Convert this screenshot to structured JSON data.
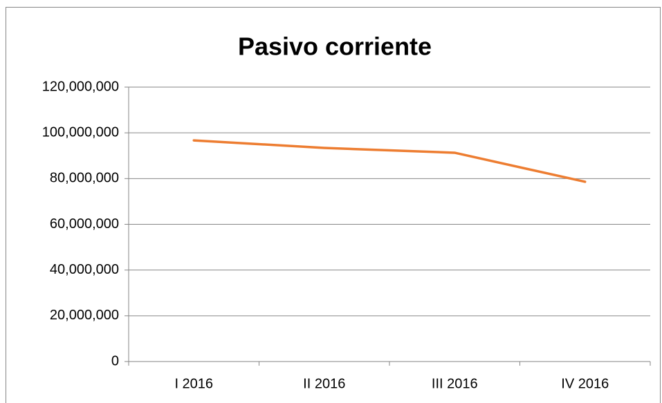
{
  "chart_data": {
    "type": "line",
    "title": "Pasivo corriente",
    "categories": [
      "I 2016",
      "II 2016",
      "III 2016",
      "IV 2016"
    ],
    "series": [
      {
        "name": "Pasivo corriente",
        "color": "#ed7d31",
        "values": [
          96700000,
          93400000,
          91300000,
          78600000
        ]
      }
    ],
    "ylim": [
      0,
      120000000
    ],
    "yticks": [
      0,
      {
        "value": 20000000,
        "label": "20,000,000"
      },
      {
        "value": 40000000,
        "label": "40,000,000"
      },
      {
        "value": 60000000,
        "label": "60,000,000"
      },
      {
        "value": 80000000,
        "label": "80,000,000"
      },
      {
        "value": 100000000,
        "label": "100,000,000"
      },
      {
        "value": 120000000,
        "label": "120,000,000"
      }
    ],
    "grid": true
  }
}
